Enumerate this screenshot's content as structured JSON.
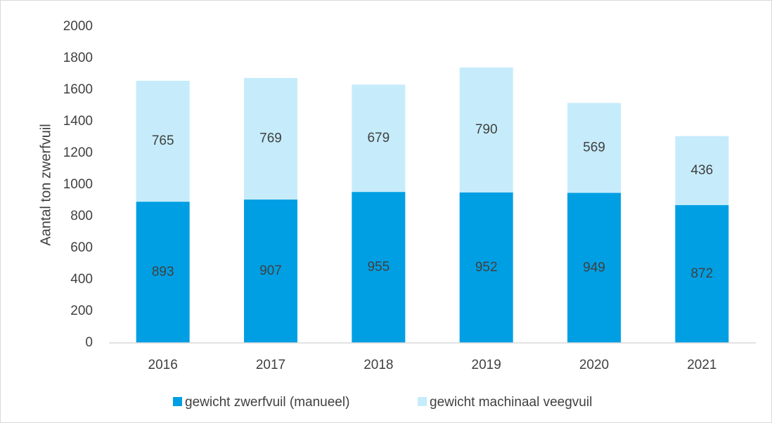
{
  "chart_data": {
    "type": "stacked_bar",
    "y_label": "Aantal ton zwerfvuil",
    "categories": [
      "2016",
      "2017",
      "2018",
      "2019",
      "2020",
      "2021"
    ],
    "series": [
      {
        "name": "gewicht zwerfvuil (manueel)",
        "color": "#009fe3",
        "values": [
          893,
          907,
          955,
          952,
          949,
          872
        ]
      },
      {
        "name": "gewicht machinaal veegvuil",
        "color": "#c6ecfb",
        "values": [
          765,
          769,
          679,
          790,
          569,
          436
        ]
      }
    ],
    "ylim": [
      0,
      2000
    ],
    "yticks": [
      0,
      200,
      400,
      600,
      800,
      1000,
      1200,
      1400,
      1600,
      1800,
      2000
    ],
    "grid": false,
    "legend": "bottom"
  }
}
